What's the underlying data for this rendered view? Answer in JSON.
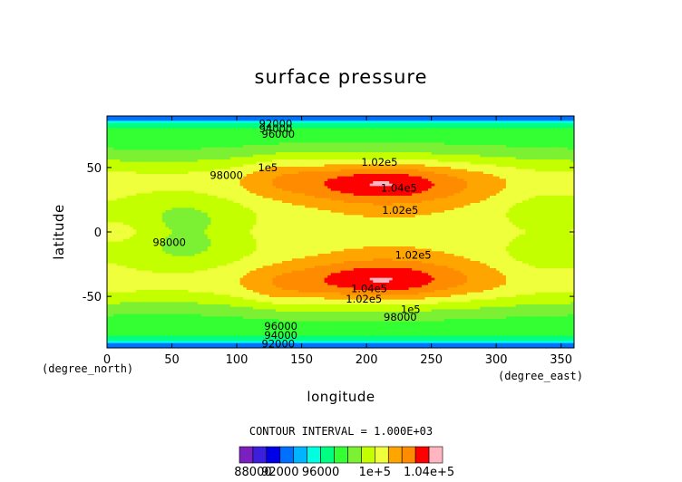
{
  "chart_data": {
    "type": "heatmap",
    "title": "surface pressure",
    "xlabel": "longitude",
    "ylabel": "latitude",
    "x_unit": "(degree_east)",
    "y_unit": "(degree_north)",
    "xlim": [
      0,
      360
    ],
    "ylim": [
      -90,
      90
    ],
    "x_ticks": [
      0,
      50,
      100,
      150,
      200,
      250,
      300,
      350
    ],
    "y_ticks": [
      50,
      0,
      -50
    ],
    "contour_interval_text": "CONTOUR INTERVAL = 1.000E+03",
    "contour_interval": 1000,
    "color_levels": [
      86000,
      88000,
      90000,
      92000,
      94000,
      95000,
      96000,
      97000,
      98000,
      99000,
      100000,
      101000,
      102000,
      103000,
      104000,
      105000
    ],
    "colors": [
      "#7c1fbf",
      "#3b1fdc",
      "#0000e6",
      "#0070ff",
      "#00b4ff",
      "#00ffe0",
      "#00ff80",
      "#33ff33",
      "#7cf032",
      "#c4ff00",
      "#f0ff3c",
      "#ffa500",
      "#ff8c00",
      "#ff0000",
      "#ffb6c1"
    ],
    "colorbar_labels": [
      "88000",
      "92000",
      "96000",
      "1e+5",
      "1.04e+5"
    ],
    "contour_labels": [
      {
        "text": "92000",
        "lon": 130,
        "lat": 84
      },
      {
        "text": "94000",
        "lon": 130,
        "lat": 80
      },
      {
        "text": "96000",
        "lon": 132,
        "lat": 76
      },
      {
        "text": "98000",
        "lon": 92,
        "lat": 44
      },
      {
        "text": "1e5",
        "lon": 124,
        "lat": 50
      },
      {
        "text": "1.02e5",
        "lon": 210,
        "lat": 54
      },
      {
        "text": "1.04e5",
        "lon": 225,
        "lat": 34
      },
      {
        "text": "1.02e5",
        "lon": 226,
        "lat": 17
      },
      {
        "text": "98000",
        "lon": 48,
        "lat": -8
      },
      {
        "text": "1.02e5",
        "lon": 236,
        "lat": -18
      },
      {
        "text": "1.04e5",
        "lon": 202,
        "lat": -44
      },
      {
        "text": "1.02e5",
        "lon": 198,
        "lat": -52
      },
      {
        "text": "1e5",
        "lon": 234,
        "lat": -60
      },
      {
        "text": "98000",
        "lon": 226,
        "lat": -66
      },
      {
        "text": "96000",
        "lon": 134,
        "lat": -73
      },
      {
        "text": "94000",
        "lon": 134,
        "lat": -80
      },
      {
        "text": "92000",
        "lon": 132,
        "lat": -87
      }
    ]
  }
}
